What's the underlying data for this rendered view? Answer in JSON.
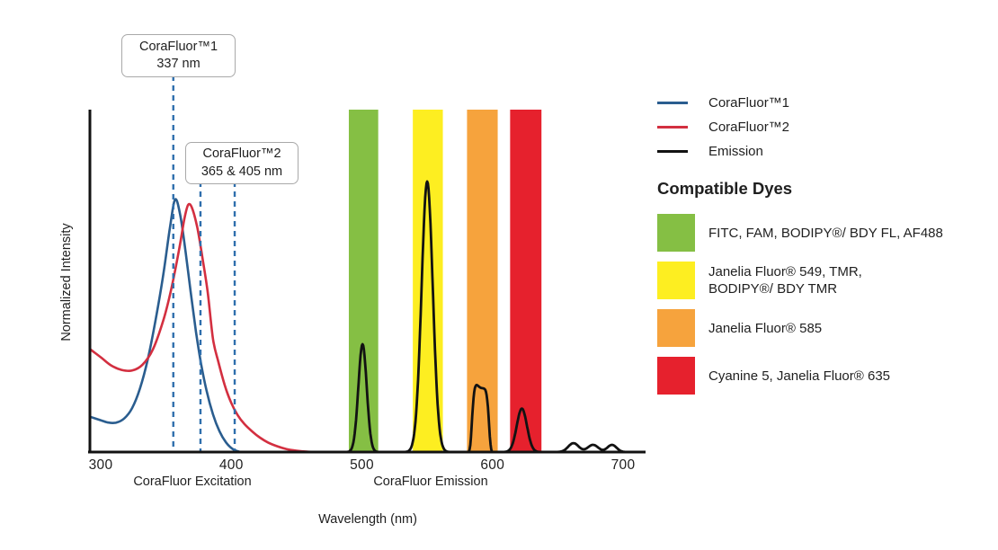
{
  "annotations": [
    {
      "line1": "CoraFluor™1",
      "line2": "337 nm"
    },
    {
      "line1": "CoraFluor™2",
      "line2": "365 & 405 nm"
    }
  ],
  "legend": {
    "items": [
      {
        "label": "CoraFluor™1",
        "color": "#2a5d8f"
      },
      {
        "label": "CoraFluor™2",
        "color": "#d32f40"
      },
      {
        "label": "Emission",
        "color": "#121212"
      }
    ]
  },
  "compatible_dyes": {
    "heading": "Compatible Dyes",
    "items": [
      {
        "color": "#85bf44",
        "lines": [
          "FITC, FAM, BODIPY®/ BDY FL, AF488"
        ]
      },
      {
        "color": "#fdee21",
        "lines": [
          "Janelia Fluor® 549, TMR,",
          "BODIPY®/ BDY TMR"
        ]
      },
      {
        "color": "#f6a33d",
        "lines": [
          "Janelia Fluor® 585"
        ]
      },
      {
        "color": "#e6212d",
        "lines": [
          "Cyanine 5, Janelia Fluor® 635"
        ]
      }
    ]
  },
  "chart_data": {
    "type": "line",
    "xlabel": "Wavelength (nm)",
    "ylabel": "Normalized Intensity",
    "x_range": [
      292,
      717
    ],
    "ylim": [
      0,
      1
    ],
    "grid": false,
    "x_ticks": [
      300,
      400,
      500,
      600,
      700
    ],
    "x_axis_captions": [
      {
        "text": "CoraFluor Excitation",
        "center_nm": 370
      },
      {
        "text": "CoraFluor Emission",
        "center_nm": 553
      }
    ],
    "dashed_markers": [
      {
        "label_nm": 337,
        "visual_nm": 355.6,
        "top_y": 84
      },
      {
        "label_nm": 365,
        "visual_nm": 376.4,
        "top_y": 202
      },
      {
        "label_nm": 405,
        "visual_nm": 402.6,
        "top_y": 202
      }
    ],
    "dashed_color": "#2f6fad",
    "bands": [
      {
        "dye": "FITC, FAM, BODIPY®/ BDY FL, AF488",
        "color": "#85bf44",
        "nm": [
          490.0,
          512.5
        ]
      },
      {
        "dye": "Janelia Fluor® 549, TMR, BODIPY®/ BDY TMR",
        "color": "#fdee21",
        "nm": [
          539.0,
          562.0
        ]
      },
      {
        "dye": "Janelia Fluor® 585",
        "color": "#f6a33d",
        "nm": [
          580.5,
          604.0
        ]
      },
      {
        "dye": "Cyanine 5, Janelia Fluor® 635",
        "color": "#e6212d",
        "nm": [
          613.5,
          637.5
        ]
      }
    ],
    "series": [
      {
        "name": "CoraFluor™1",
        "color": "#2a5d8f",
        "kind": "points",
        "points": [
          [
            292,
            0.103
          ],
          [
            300,
            0.093
          ],
          [
            306,
            0.086
          ],
          [
            312,
            0.086
          ],
          [
            318,
            0.098
          ],
          [
            324,
            0.128
          ],
          [
            330,
            0.185
          ],
          [
            336,
            0.27
          ],
          [
            342,
            0.385
          ],
          [
            348,
            0.52
          ],
          [
            353,
            0.655
          ],
          [
            357,
            0.738
          ],
          [
            361,
            0.69
          ],
          [
            365,
            0.585
          ],
          [
            369,
            0.465
          ],
          [
            373,
            0.35
          ],
          [
            377,
            0.255
          ],
          [
            381,
            0.18
          ],
          [
            386,
            0.11
          ],
          [
            391,
            0.06
          ],
          [
            396,
            0.028
          ],
          [
            401,
            0.009
          ],
          [
            406,
            0.001
          ],
          [
            410,
            0
          ]
        ]
      },
      {
        "name": "CoraFluor™2",
        "color": "#d32f40",
        "kind": "points",
        "points": [
          [
            292,
            0.3
          ],
          [
            300,
            0.277
          ],
          [
            308,
            0.253
          ],
          [
            316,
            0.24
          ],
          [
            324,
            0.238
          ],
          [
            332,
            0.255
          ],
          [
            340,
            0.3
          ],
          [
            348,
            0.385
          ],
          [
            354,
            0.475
          ],
          [
            360,
            0.59
          ],
          [
            364,
            0.68
          ],
          [
            367,
            0.722
          ],
          [
            370,
            0.712
          ],
          [
            374,
            0.655
          ],
          [
            378,
            0.565
          ],
          [
            382,
            0.465
          ],
          [
            386,
            0.33
          ],
          [
            390,
            0.265
          ],
          [
            395,
            0.195
          ],
          [
            400,
            0.143
          ],
          [
            405,
            0.107
          ],
          [
            410,
            0.082
          ],
          [
            416,
            0.06
          ],
          [
            422,
            0.042
          ],
          [
            428,
            0.028
          ],
          [
            435,
            0.017
          ],
          [
            442,
            0.009
          ],
          [
            450,
            0.004
          ],
          [
            458,
            0.001
          ],
          [
            464,
            0
          ]
        ]
      },
      {
        "name": "Emission",
        "color": "#121212",
        "kind": "peaks",
        "range_nm": [
          468,
          716
        ],
        "peaks": [
          {
            "shape": "gauss",
            "center": 500.5,
            "height": 0.315,
            "sigma": 3.2
          },
          {
            "shape": "gauss",
            "center": 550.0,
            "height": 0.79,
            "sigma": 4.3
          },
          {
            "shape": "flattop",
            "center": 590.8,
            "height": 0.186,
            "width": 6.8
          },
          {
            "shape": "gauss",
            "center": 587.0,
            "height": 0.012,
            "sigma": 2.0
          },
          {
            "shape": "gauss",
            "center": 622.5,
            "height": 0.127,
            "sigma": 3.9
          },
          {
            "shape": "gauss",
            "center": 662.0,
            "height": 0.026,
            "sigma": 4.0
          },
          {
            "shape": "gauss",
            "center": 677.0,
            "height": 0.021,
            "sigma": 4.0
          },
          {
            "shape": "gauss",
            "center": 691.5,
            "height": 0.021,
            "sigma": 3.5
          }
        ]
      }
    ]
  }
}
